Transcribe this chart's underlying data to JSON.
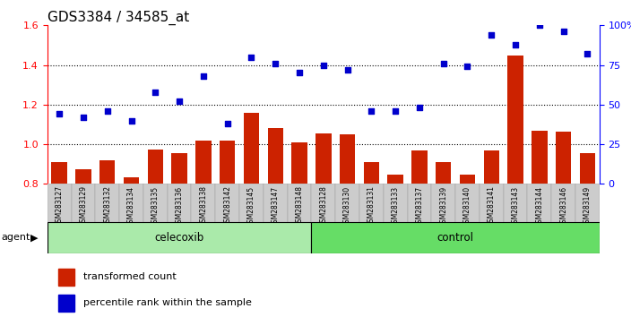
{
  "title": "GDS3384 / 34585_at",
  "samples": [
    "GSM283127",
    "GSM283129",
    "GSM283132",
    "GSM283134",
    "GSM283135",
    "GSM283136",
    "GSM283138",
    "GSM283142",
    "GSM283145",
    "GSM283147",
    "GSM283148",
    "GSM283128",
    "GSM283130",
    "GSM283131",
    "GSM283133",
    "GSM283137",
    "GSM283139",
    "GSM283140",
    "GSM283141",
    "GSM283143",
    "GSM283144",
    "GSM283146",
    "GSM283149"
  ],
  "bar_values": [
    0.91,
    0.875,
    0.92,
    0.835,
    0.975,
    0.955,
    1.02,
    1.02,
    1.16,
    1.08,
    1.01,
    1.055,
    1.05,
    0.91,
    0.845,
    0.97,
    0.91,
    0.845,
    0.97,
    1.45,
    1.07,
    1.065,
    0.955
  ],
  "scatter_pct": [
    44,
    42,
    46,
    40,
    58,
    52,
    68,
    38,
    80,
    76,
    70,
    75,
    72,
    46,
    46,
    48,
    76,
    74,
    94,
    88,
    100,
    96,
    82
  ],
  "celecoxib_count": 11,
  "control_count": 12,
  "ylim_left": [
    0.8,
    1.6
  ],
  "ylim_right": [
    0,
    100
  ],
  "yticks_left": [
    0.8,
    1.0,
    1.2,
    1.4,
    1.6
  ],
  "yticks_right": [
    0,
    25,
    50,
    75,
    100
  ],
  "bar_color": "#cc2200",
  "scatter_color": "#0000cc",
  "celecoxib_color": "#aaeaaa",
  "control_color": "#66dd66",
  "agent_label": "agent",
  "celecoxib_label": "celecoxib",
  "control_label": "control",
  "legend_bar_label": "transformed count",
  "legend_scatter_label": "percentile rank within the sample",
  "title_fontsize": 11,
  "axis_fontsize": 8
}
